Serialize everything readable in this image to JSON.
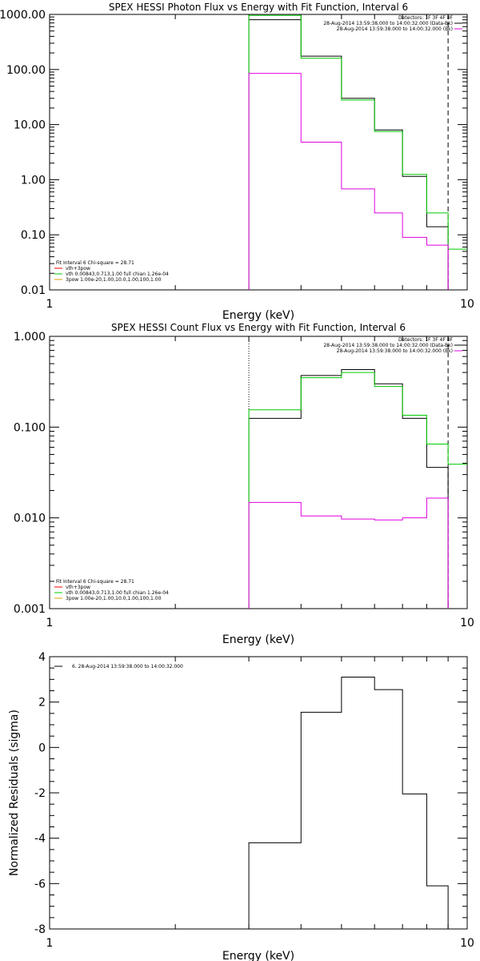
{
  "colors": {
    "black": "#000000",
    "green": "#00cc00",
    "magenta": "#e000e0",
    "red": "#ff0000",
    "orange": "#e0a000"
  },
  "chart_data": [
    {
      "type": "line",
      "title": "SPEX HESSI Photon Flux vs Energy with Fit Function, Interval 6",
      "xlabel": "Energy (keV)",
      "ylabel": "",
      "xscale": "log",
      "yscale": "log",
      "xlim": [
        1,
        10
      ],
      "ylim": [
        0.01,
        1000
      ],
      "xticks": [
        {
          "v": 1,
          "label": "1"
        },
        {
          "v": 10,
          "label": "10"
        }
      ],
      "yticks": [
        {
          "v": 0.01,
          "label": "0.01"
        },
        {
          "v": 0.1,
          "label": "0.10"
        },
        {
          "v": 1,
          "label": "1.00"
        },
        {
          "v": 10,
          "label": "10.00"
        },
        {
          "v": 100,
          "label": "100.00"
        },
        {
          "v": 1000,
          "label": "1000.00"
        }
      ],
      "vlines": [
        {
          "x": 3.0,
          "style": "dotted"
        },
        {
          "x": 9.0,
          "style": "dashed"
        }
      ],
      "legend_left": [
        "Fit Interval 6   Chi-square = 28.71",
        "vth+3pow",
        "vth 0.00843,0.713,1.00  full chian 1.26e-04",
        "3pow 1.00e-20,1.00,10.0,1.00,100,1.00"
      ],
      "legend_right": [
        "Detectors: 1F 3F 4F 8F",
        "28-Aug-2014 13:59:38.000 to 14:00:32.000 (Data-Bk)",
        "28-Aug-2014 13:59:38.000 to 14:00:32.000 (Bk)"
      ],
      "edges": [
        3.0,
        4.0,
        5.0,
        6.0,
        7.0,
        8.0,
        9.0,
        10.0
      ],
      "series": [
        {
          "key": "data",
          "color": "black",
          "values": [
            800,
            175,
            30,
            8.0,
            1.15,
            0.14
          ]
        },
        {
          "key": "fit",
          "color": "green",
          "values": [
            960,
            160,
            28,
            7.5,
            1.25,
            0.25,
            0.055
          ]
        },
        {
          "key": "bk",
          "color": "magenta",
          "values": [
            85,
            4.8,
            0.68,
            0.25,
            0.09,
            0.065
          ]
        }
      ]
    },
    {
      "type": "line",
      "title": "SPEX HESSI Count Flux vs Energy with Fit Function, Interval 6",
      "xlabel": "Energy (keV)",
      "ylabel": "",
      "xscale": "log",
      "yscale": "log",
      "xlim": [
        1,
        10
      ],
      "ylim": [
        0.001,
        1
      ],
      "xticks": [
        {
          "v": 1,
          "label": "1"
        },
        {
          "v": 10,
          "label": "10"
        }
      ],
      "yticks": [
        {
          "v": 0.001,
          "label": "0.001"
        },
        {
          "v": 0.01,
          "label": "0.010"
        },
        {
          "v": 0.1,
          "label": "0.100"
        },
        {
          "v": 1,
          "label": "1.000"
        }
      ],
      "vlines": [
        {
          "x": 3.0,
          "style": "dotted"
        },
        {
          "x": 9.0,
          "style": "dashed"
        }
      ],
      "legend_left": [
        "Fit Interval 6   Chi-square = 28.71",
        "vth+3pow",
        "vth 0.00843,0.713,1.00  full chian 1.26e-04",
        "3pow 1.00e-20,1.00,10.0,1.00,100,1.00"
      ],
      "legend_right": [
        "Detectors: 1F 3F 4F 8F",
        "28-Aug-2014 13:59:38.000 to 14:00:32.000 (Data-Bk)",
        "28-Aug-2014 13:59:38.000 to 14:00:32.000 (Bk)"
      ],
      "edges": [
        3.0,
        4.0,
        5.0,
        6.0,
        7.0,
        8.0,
        9.0,
        10.0
      ],
      "series": [
        {
          "key": "data",
          "color": "black",
          "values": [
            0.125,
            0.37,
            0.43,
            0.3,
            0.125,
            0.036
          ]
        },
        {
          "key": "fit",
          "color": "green",
          "values": [
            0.155,
            0.35,
            0.4,
            0.28,
            0.135,
            0.065,
            0.039
          ]
        },
        {
          "key": "bk",
          "color": "magenta",
          "values": [
            0.0148,
            0.0105,
            0.0097,
            0.0095,
            0.01,
            0.0165
          ]
        }
      ]
    },
    {
      "type": "line",
      "title": "",
      "xlabel": "Energy (keV)",
      "ylabel": "Normalized Residuals (sigma)",
      "xscale": "log",
      "yscale": "linear",
      "xlim": [
        1,
        10
      ],
      "ylim": [
        -8,
        4
      ],
      "xticks": [
        {
          "v": 1,
          "label": "1"
        },
        {
          "v": 10,
          "label": "10"
        }
      ],
      "yticks": [
        {
          "v": -8,
          "label": "-8"
        },
        {
          "v": -6,
          "label": "-6"
        },
        {
          "v": -4,
          "label": "-4"
        },
        {
          "v": -2,
          "label": "-2"
        },
        {
          "v": 0,
          "label": "0"
        },
        {
          "v": 2,
          "label": "2"
        },
        {
          "v": 4,
          "label": "4"
        }
      ],
      "legend_left": [
        "6. 28-Aug-2014 13:59:38.000 to 14:00:32.000"
      ],
      "edges": [
        3.0,
        4.0,
        5.0,
        6.0,
        7.0,
        8.0,
        9.0
      ],
      "series": [
        {
          "key": "resid",
          "color": "black",
          "values": [
            -4.2,
            1.55,
            3.1,
            2.55,
            -2.05,
            -6.1
          ],
          "start": -8,
          "end": -8
        }
      ]
    }
  ]
}
